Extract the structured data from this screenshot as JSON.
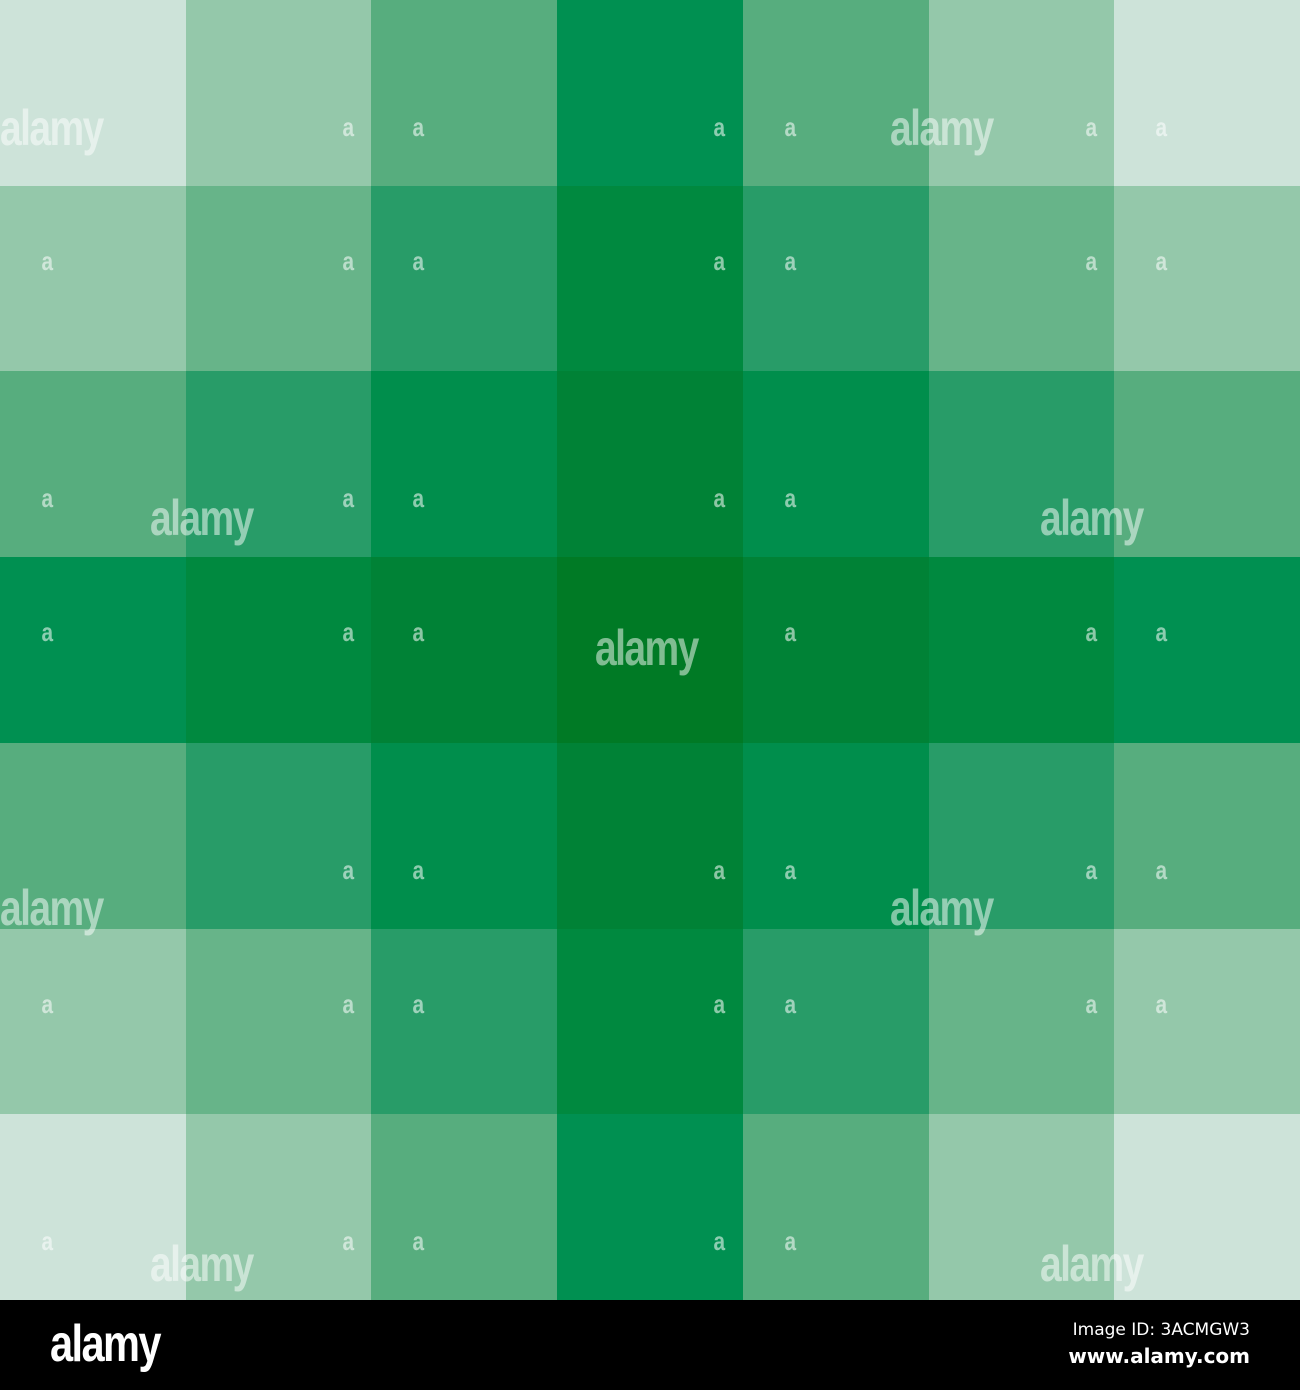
{
  "pattern": {
    "grid_size": 7,
    "palette": {
      "0-0": "#007a25",
      "0-1": "#008236",
      "0-2": "#00893f",
      "0-3": "#009051",
      "1-1": "#008e4c",
      "1-2": "#289c68",
      "1-3": "#57ad7e",
      "2-2": "#67b489",
      "2-3": "#94c8aa",
      "3-3": "#cde3d9"
    }
  },
  "watermark": {
    "text": "alamy",
    "small_text": "a"
  },
  "footer": {
    "logo": "alamy",
    "image_id": "Image ID: 3ACMGW3",
    "site": "www.alamy.com"
  }
}
